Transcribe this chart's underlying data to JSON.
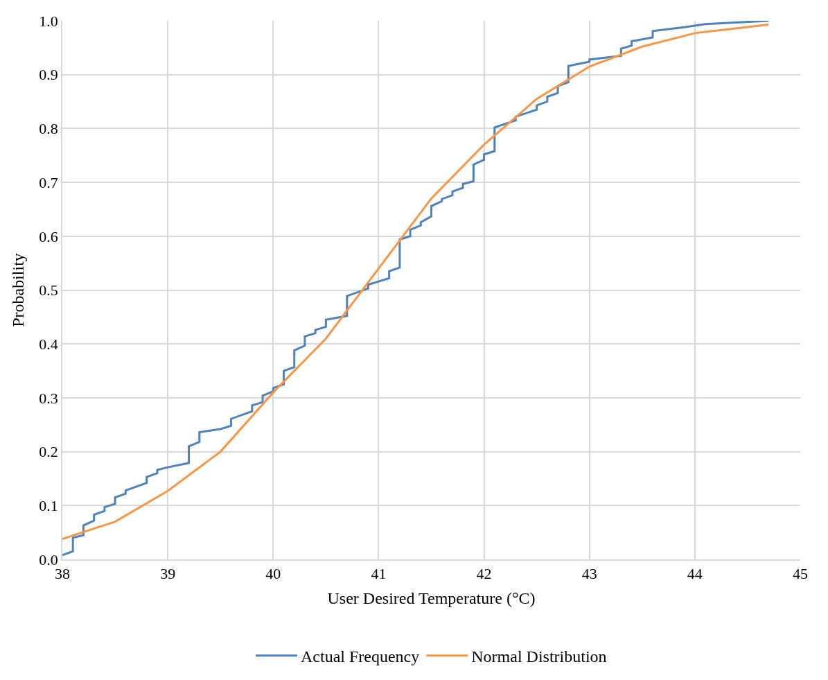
{
  "chart_data": {
    "type": "line",
    "xlabel": "User Desired Temperature (°C)",
    "ylabel": "Probability",
    "xlim": [
      38,
      45
    ],
    "xticks": [
      38,
      39,
      40,
      41,
      42,
      43,
      44,
      45
    ],
    "ylim": [
      0,
      1
    ],
    "yticks": [
      {
        "value": 0,
        "label": "0.0"
      },
      {
        "value": 0.1,
        "label": "0.1"
      },
      {
        "value": 0.2,
        "label": "0.2"
      },
      {
        "value": 0.3,
        "label": "0.3"
      },
      {
        "value": 0.4,
        "label": "0.4"
      },
      {
        "value": 0.5,
        "label": "0.5"
      },
      {
        "value": 0.6,
        "label": "0.6"
      },
      {
        "value": 0.7,
        "label": "0.7"
      },
      {
        "value": 0.8,
        "label": "0.8"
      },
      {
        "value": 0.9,
        "label": "0.9"
      },
      {
        "value": 1,
        "label": "1.0"
      }
    ],
    "grid": true,
    "legend": "bottom",
    "marker": "none",
    "line_style": "solid",
    "series": [
      {
        "name": "Actual Frequency",
        "color": "#4f81bd",
        "x": [
          38.0,
          38.1,
          38.1,
          38.2,
          38.2,
          38.3,
          38.3,
          38.4,
          38.4,
          38.5,
          38.5,
          38.6,
          38.6,
          38.8,
          38.8,
          38.9,
          38.9,
          39.0,
          39.2,
          39.2,
          39.3,
          39.3,
          39.5,
          39.6,
          39.6,
          39.8,
          39.8,
          39.9,
          39.9,
          40.0,
          40.0,
          40.1,
          40.1,
          40.2,
          40.2,
          40.3,
          40.3,
          40.4,
          40.4,
          40.5,
          40.5,
          40.7,
          40.7,
          40.9,
          40.9,
          41.1,
          41.1,
          41.2,
          41.2,
          41.3,
          41.3,
          41.4,
          41.4,
          41.5,
          41.5,
          41.6,
          41.6,
          41.7,
          41.7,
          41.8,
          41.8,
          41.9,
          41.9,
          42.0,
          42.0,
          42.1,
          42.1,
          42.3,
          42.3,
          42.5,
          42.5,
          42.6,
          42.6,
          42.7,
          42.7,
          42.8,
          42.8,
          43.0,
          43.0,
          43.3,
          43.3,
          43.4,
          43.4,
          43.6,
          43.6,
          43.9,
          44.1,
          44.7
        ],
        "values": [
          0.008,
          0.015,
          0.04,
          0.045,
          0.063,
          0.072,
          0.083,
          0.09,
          0.097,
          0.103,
          0.115,
          0.122,
          0.128,
          0.142,
          0.153,
          0.16,
          0.166,
          0.171,
          0.179,
          0.21,
          0.218,
          0.236,
          0.242,
          0.248,
          0.261,
          0.275,
          0.286,
          0.292,
          0.304,
          0.312,
          0.318,
          0.325,
          0.35,
          0.357,
          0.388,
          0.397,
          0.414,
          0.42,
          0.426,
          0.432,
          0.445,
          0.452,
          0.489,
          0.503,
          0.51,
          0.522,
          0.535,
          0.542,
          0.594,
          0.6,
          0.612,
          0.62,
          0.626,
          0.637,
          0.656,
          0.665,
          0.669,
          0.676,
          0.683,
          0.69,
          0.697,
          0.702,
          0.733,
          0.742,
          0.752,
          0.758,
          0.802,
          0.815,
          0.822,
          0.835,
          0.843,
          0.85,
          0.859,
          0.866,
          0.879,
          0.886,
          0.916,
          0.924,
          0.928,
          0.935,
          0.948,
          0.954,
          0.962,
          0.969,
          0.981,
          0.988,
          0.994,
          1.0
        ]
      },
      {
        "name": "Normal Distribution",
        "color": "#f79646",
        "x": [
          38.0,
          38.5,
          39.0,
          39.5,
          40.0,
          40.5,
          41.0,
          41.5,
          42.0,
          42.5,
          43.0,
          43.5,
          44.0,
          44.7
        ],
        "values": [
          0.038,
          0.07,
          0.127,
          0.2,
          0.31,
          0.41,
          0.54,
          0.67,
          0.77,
          0.855,
          0.915,
          0.952,
          0.977,
          0.993
        ]
      }
    ]
  }
}
